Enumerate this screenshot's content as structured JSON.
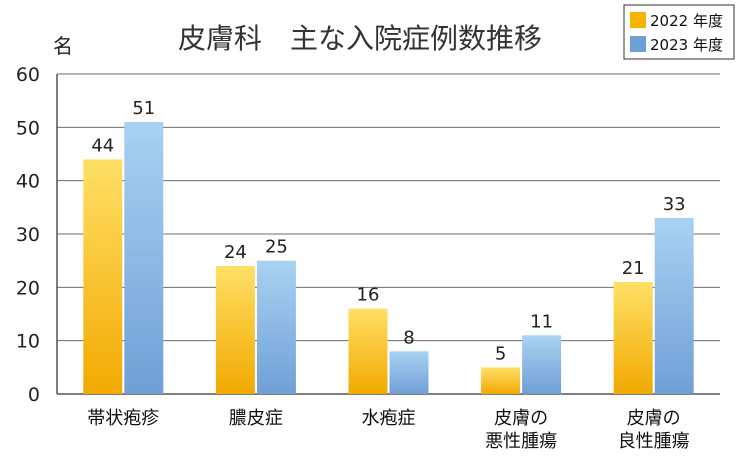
{
  "chart_data": {
    "type": "bar",
    "title": "皮膚科　主な入院症例数推移",
    "ylabel": "名",
    "ylim": [
      0,
      60
    ],
    "yticks": [
      0,
      10,
      20,
      30,
      40,
      50,
      60
    ],
    "grid": true,
    "legend_position": "top-right",
    "categories": [
      [
        "帯状疱疹"
      ],
      [
        "膿皮症"
      ],
      [
        "水疱症"
      ],
      [
        "皮膚の",
        "悪性腫瘍"
      ],
      [
        "皮膚の",
        "良性腫瘍"
      ]
    ],
    "series": [
      {
        "name": "2022 年度",
        "values": [
          44,
          24,
          16,
          5,
          21
        ],
        "color_top": "#ffe066",
        "color_bottom": "#f2a900",
        "legend_color": "#f5b400"
      },
      {
        "name": "2023 年度",
        "values": [
          51,
          25,
          8,
          11,
          33
        ],
        "color_top": "#a9d2f2",
        "color_bottom": "#6f9fd6",
        "legend_color": "#6f9fd6"
      }
    ]
  }
}
